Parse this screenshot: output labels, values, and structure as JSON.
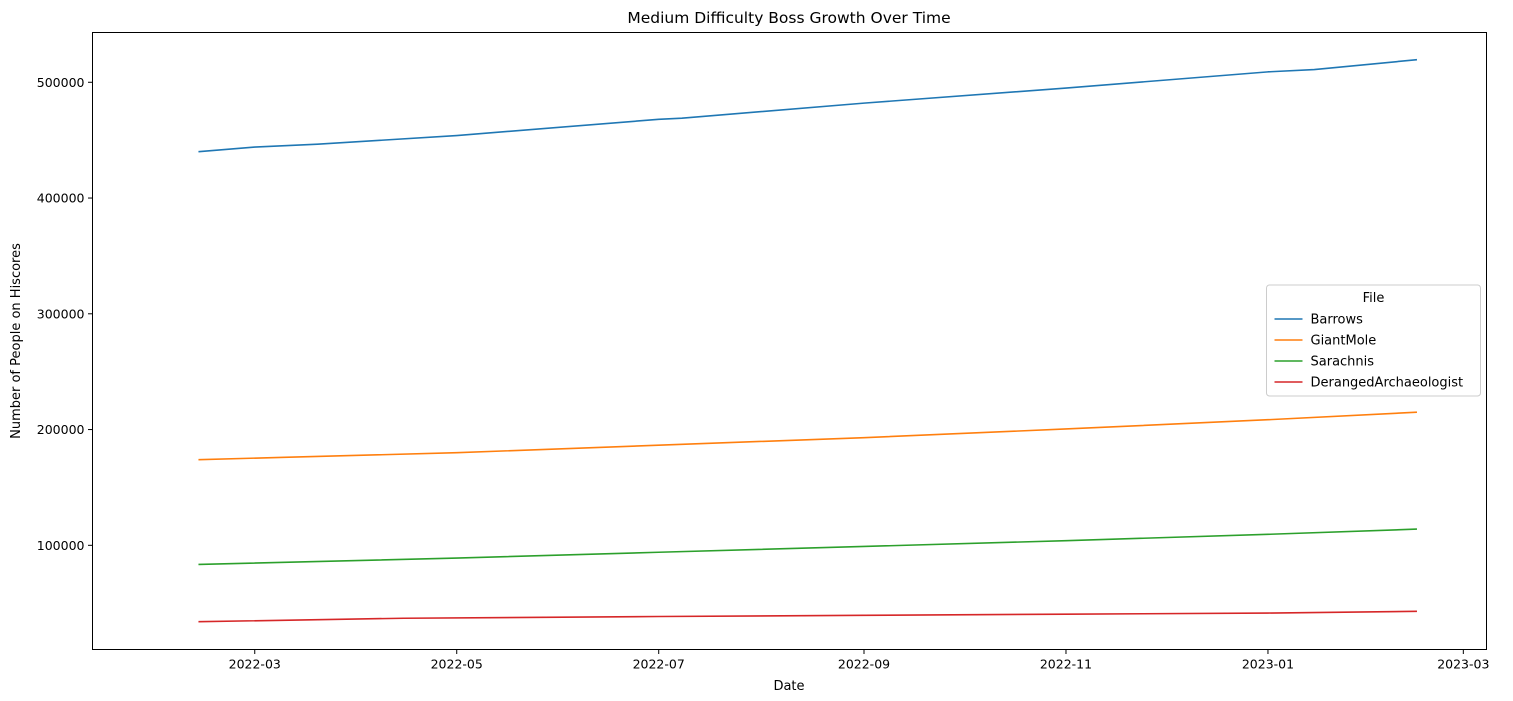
{
  "chart_data": {
    "type": "line",
    "title": "Medium Difficulty Boss Growth Over Time",
    "xlabel": "Date",
    "ylabel": "Number of People on Hiscores",
    "xlim": [
      "2022-01-11",
      "2023-03-08"
    ],
    "ylim": [
      10000,
      543000
    ],
    "x_ticks": [
      "2022-03",
      "2022-05",
      "2022-07",
      "2022-09",
      "2022-11",
      "2023-01",
      "2023-03"
    ],
    "y_ticks": [
      100000,
      200000,
      300000,
      400000,
      500000
    ],
    "grid": false,
    "legend": {
      "title": "File",
      "placement": "center-right"
    },
    "series": [
      {
        "name": "Barrows",
        "color": "#1f77b4",
        "points": [
          [
            "2022-02-12",
            440000
          ],
          [
            "2022-03-01",
            444000
          ],
          [
            "2022-03-20",
            446500
          ],
          [
            "2022-05-01",
            454000
          ],
          [
            "2022-07-01",
            468000
          ],
          [
            "2022-07-08",
            469000
          ],
          [
            "2022-09-01",
            482000
          ],
          [
            "2022-11-01",
            495000
          ],
          [
            "2023-01-01",
            509000
          ],
          [
            "2023-01-15",
            511000
          ],
          [
            "2023-02-15",
            519500
          ]
        ]
      },
      {
        "name": "GiantMole",
        "color": "#ff7f0e",
        "points": [
          [
            "2022-02-12",
            174000
          ],
          [
            "2022-03-10",
            176000
          ],
          [
            "2022-05-01",
            180000
          ],
          [
            "2022-07-01",
            186500
          ],
          [
            "2022-09-01",
            193000
          ],
          [
            "2022-11-01",
            200500
          ],
          [
            "2023-01-01",
            208500
          ],
          [
            "2023-02-15",
            215000
          ]
        ]
      },
      {
        "name": "Sarachnis",
        "color": "#2ca02c",
        "points": [
          [
            "2022-02-12",
            83500
          ],
          [
            "2022-05-01",
            89000
          ],
          [
            "2022-07-01",
            94000
          ],
          [
            "2022-09-01",
            99000
          ],
          [
            "2022-11-01",
            104000
          ],
          [
            "2023-01-01",
            109500
          ],
          [
            "2023-02-15",
            114000
          ]
        ]
      },
      {
        "name": "DerangedArchaeologist",
        "color": "#d62728",
        "points": [
          [
            "2022-02-12",
            34000
          ],
          [
            "2022-04-15",
            37000
          ],
          [
            "2022-07-01",
            38500
          ],
          [
            "2022-09-01",
            39500
          ],
          [
            "2022-11-01",
            40500
          ],
          [
            "2023-01-01",
            41500
          ],
          [
            "2023-02-15",
            43000
          ]
        ]
      }
    ]
  }
}
